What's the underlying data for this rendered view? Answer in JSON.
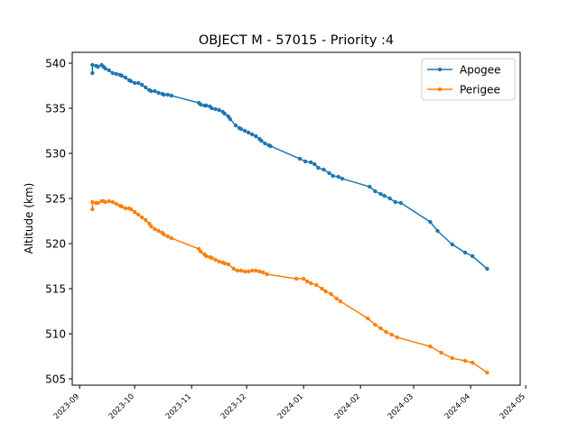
{
  "chart_data": {
    "type": "line",
    "title": "OBJECT M - 57015 - Priority :4",
    "xlabel": "",
    "ylabel": "Altitude (km)",
    "x_axis_type": "date",
    "xlim": [
      "2023-08-28",
      "2024-04-28"
    ],
    "ylim": [
      504.3,
      541.2
    ],
    "x_ticks": [
      "2023-09-01",
      "2023-10-01",
      "2023-11-01",
      "2023-12-01",
      "2024-01-01",
      "2024-02-01",
      "2024-03-01",
      "2024-04-01",
      "2024-05-01"
    ],
    "x_tick_labels": [
      "2023-09",
      "2023-10",
      "2023-11",
      "2023-12",
      "2024-01",
      "2024-02",
      "2024-03",
      "2024-04",
      "2024-05"
    ],
    "y_ticks": [
      505,
      510,
      515,
      520,
      525,
      530,
      535,
      540
    ],
    "y_tick_labels": [
      "505",
      "510",
      "515",
      "520",
      "525",
      "530",
      "535",
      "540"
    ],
    "grid": false,
    "legend_position": "top-right",
    "series": [
      {
        "name": "Apogee",
        "color": "#1f77b4",
        "marker": "circle",
        "points": [
          [
            "2023-09-08",
            538.9
          ],
          [
            "2023-09-08",
            539.8
          ],
          [
            "2023-09-10",
            539.7
          ],
          [
            "2023-09-11",
            539.6
          ],
          [
            "2023-09-13",
            539.8
          ],
          [
            "2023-09-14",
            539.6
          ],
          [
            "2023-09-15",
            539.4
          ],
          [
            "2023-09-17",
            539.2
          ],
          [
            "2023-09-19",
            538.9
          ],
          [
            "2023-09-21",
            538.8
          ],
          [
            "2023-09-23",
            538.7
          ],
          [
            "2023-09-24",
            538.6
          ],
          [
            "2023-09-26",
            538.4
          ],
          [
            "2023-09-28",
            538.1
          ],
          [
            "2023-09-29",
            538.0
          ],
          [
            "2023-10-01",
            537.8
          ],
          [
            "2023-10-03",
            537.8
          ],
          [
            "2023-10-05",
            537.6
          ],
          [
            "2023-10-07",
            537.3
          ],
          [
            "2023-10-09",
            537.0
          ],
          [
            "2023-10-10",
            536.9
          ],
          [
            "2023-10-12",
            536.9
          ],
          [
            "2023-10-14",
            536.7
          ],
          [
            "2023-10-16",
            536.6
          ],
          [
            "2023-10-17",
            536.5
          ],
          [
            "2023-10-19",
            536.5
          ],
          [
            "2023-10-21",
            536.4
          ],
          [
            "2023-11-05",
            535.6
          ],
          [
            "2023-11-06",
            535.4
          ],
          [
            "2023-11-08",
            535.3
          ],
          [
            "2023-11-09",
            535.3
          ],
          [
            "2023-11-11",
            535.2
          ],
          [
            "2023-11-12",
            535.0
          ],
          [
            "2023-11-14",
            534.9
          ],
          [
            "2023-11-16",
            534.8
          ],
          [
            "2023-11-18",
            534.6
          ],
          [
            "2023-11-19",
            534.4
          ],
          [
            "2023-11-21",
            534.1
          ],
          [
            "2023-11-22",
            533.8
          ],
          [
            "2023-11-25",
            533.1
          ],
          [
            "2023-11-27",
            532.8
          ],
          [
            "2023-11-28",
            532.7
          ],
          [
            "2023-11-30",
            532.5
          ],
          [
            "2023-12-02",
            532.3
          ],
          [
            "2023-12-04",
            532.1
          ],
          [
            "2023-12-06",
            531.9
          ],
          [
            "2023-12-08",
            531.6
          ],
          [
            "2023-12-09",
            531.4
          ],
          [
            "2023-12-11",
            531.1
          ],
          [
            "2023-12-13",
            530.9
          ],
          [
            "2023-12-14",
            530.8
          ],
          [
            "2023-12-30",
            529.4
          ],
          [
            "2024-01-02",
            529.1
          ],
          [
            "2024-01-05",
            529.0
          ],
          [
            "2024-01-07",
            528.8
          ],
          [
            "2024-01-09",
            528.4
          ],
          [
            "2024-01-12",
            528.2
          ],
          [
            "2024-01-15",
            527.8
          ],
          [
            "2024-01-17",
            527.5
          ],
          [
            "2024-01-20",
            527.4
          ],
          [
            "2024-01-22",
            527.2
          ],
          [
            "2024-02-06",
            526.3
          ],
          [
            "2024-02-09",
            525.8
          ],
          [
            "2024-02-12",
            525.5
          ],
          [
            "2024-02-14",
            525.3
          ],
          [
            "2024-02-17",
            525.0
          ],
          [
            "2024-02-20",
            524.6
          ],
          [
            "2024-02-23",
            524.5
          ],
          [
            "2024-03-10",
            522.4
          ],
          [
            "2024-03-14",
            521.4
          ],
          [
            "2024-03-22",
            519.9
          ],
          [
            "2024-03-29",
            519.0
          ],
          [
            "2024-04-02",
            518.6
          ],
          [
            "2024-04-10",
            517.2
          ]
        ]
      },
      {
        "name": "Perigee",
        "color": "#ff7f0e",
        "marker": "circle",
        "points": [
          [
            "2023-09-08",
            523.8
          ],
          [
            "2023-09-08",
            524.6
          ],
          [
            "2023-09-10",
            524.5
          ],
          [
            "2023-09-11",
            524.5
          ],
          [
            "2023-09-13",
            524.7
          ],
          [
            "2023-09-14",
            524.7
          ],
          [
            "2023-09-15",
            524.6
          ],
          [
            "2023-09-17",
            524.7
          ],
          [
            "2023-09-19",
            524.6
          ],
          [
            "2023-09-21",
            524.4
          ],
          [
            "2023-09-23",
            524.2
          ],
          [
            "2023-09-24",
            524.1
          ],
          [
            "2023-09-26",
            523.9
          ],
          [
            "2023-09-28",
            523.9
          ],
          [
            "2023-09-29",
            523.8
          ],
          [
            "2023-10-01",
            523.5
          ],
          [
            "2023-10-03",
            523.2
          ],
          [
            "2023-10-05",
            522.9
          ],
          [
            "2023-10-07",
            522.6
          ],
          [
            "2023-10-09",
            522.2
          ],
          [
            "2023-10-10",
            521.9
          ],
          [
            "2023-10-12",
            521.6
          ],
          [
            "2023-10-14",
            521.4
          ],
          [
            "2023-10-16",
            521.2
          ],
          [
            "2023-10-17",
            521.0
          ],
          [
            "2023-10-19",
            520.8
          ],
          [
            "2023-10-21",
            520.6
          ],
          [
            "2023-11-05",
            519.4
          ],
          [
            "2023-11-06",
            519.1
          ],
          [
            "2023-11-08",
            518.8
          ],
          [
            "2023-11-09",
            518.6
          ],
          [
            "2023-11-11",
            518.5
          ],
          [
            "2023-11-12",
            518.4
          ],
          [
            "2023-11-14",
            518.2
          ],
          [
            "2023-11-16",
            518.0
          ],
          [
            "2023-11-18",
            517.9
          ],
          [
            "2023-11-19",
            517.8
          ],
          [
            "2023-11-21",
            517.7
          ],
          [
            "2023-11-24",
            517.2
          ],
          [
            "2023-11-26",
            517.0
          ],
          [
            "2023-11-28",
            517.0
          ],
          [
            "2023-11-30",
            516.9
          ],
          [
            "2023-12-02",
            516.9
          ],
          [
            "2023-12-04",
            517.0
          ],
          [
            "2023-12-06",
            517.0
          ],
          [
            "2023-12-08",
            516.9
          ],
          [
            "2023-12-10",
            516.8
          ],
          [
            "2023-12-12",
            516.6
          ],
          [
            "2023-12-28",
            516.1
          ],
          [
            "2024-01-01",
            516.1
          ],
          [
            "2024-01-03",
            515.8
          ],
          [
            "2024-01-05",
            515.6
          ],
          [
            "2024-01-08",
            515.4
          ],
          [
            "2024-01-11",
            515.0
          ],
          [
            "2024-01-13",
            514.7
          ],
          [
            "2024-01-16",
            514.4
          ],
          [
            "2024-01-19",
            513.9
          ],
          [
            "2024-01-21",
            513.6
          ],
          [
            "2024-02-05",
            511.7
          ],
          [
            "2024-02-09",
            511.0
          ],
          [
            "2024-02-12",
            510.6
          ],
          [
            "2024-02-15",
            510.2
          ],
          [
            "2024-02-18",
            509.9
          ],
          [
            "2024-02-21",
            509.6
          ],
          [
            "2024-03-10",
            508.6
          ],
          [
            "2024-03-16",
            507.9
          ],
          [
            "2024-03-22",
            507.3
          ],
          [
            "2024-03-29",
            507.0
          ],
          [
            "2024-04-02",
            506.8
          ],
          [
            "2024-04-10",
            505.7
          ]
        ]
      }
    ]
  }
}
